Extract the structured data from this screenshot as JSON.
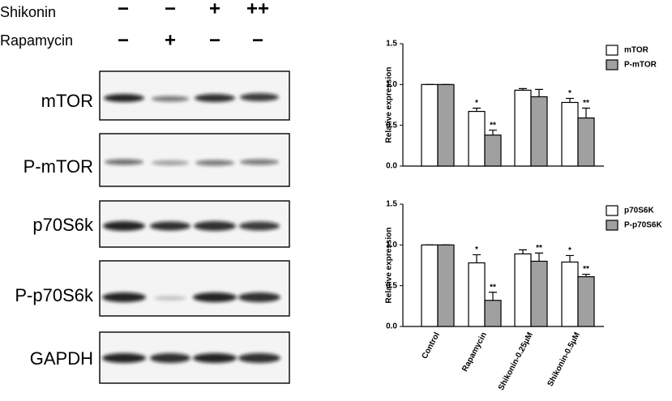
{
  "blot": {
    "treatments": [
      {
        "name": "Shikonin",
        "levels": [
          "−",
          "−",
          "+",
          "++"
        ]
      },
      {
        "name": "Rapamycin",
        "levels": [
          "−",
          "+",
          "−",
          "−"
        ]
      }
    ],
    "rows": [
      "mTOR",
      "P-mTOR",
      "p70S6k",
      "P-p70S6k",
      "GAPDH"
    ]
  },
  "chart_data": [
    {
      "type": "bar",
      "y_label": "Relative expression",
      "ylim": [
        0,
        1.5
      ],
      "yticks": [
        {
          "value": 0,
          "label": "0.0"
        },
        {
          "value": 0.5,
          "label": "0.5"
        },
        {
          "value": 1,
          "label": "1.0"
        },
        {
          "value": 1.5,
          "label": "1.5"
        }
      ],
      "series": [
        {
          "name": "mTOR",
          "color": "#ffffff",
          "values": [
            1,
            0.67,
            0.93,
            0.78
          ],
          "errors": [
            0,
            0.04,
            0.02,
            0.05
          ],
          "annotations": [
            null,
            "*",
            null,
            "*"
          ]
        },
        {
          "name": "P-mTOR",
          "color": "#a0a0a0",
          "values": [
            1,
            0.38,
            0.85,
            0.59
          ],
          "errors": [
            0,
            0.06,
            0.09,
            0.12
          ],
          "annotations": [
            null,
            "**",
            null,
            "**"
          ]
        }
      ]
    },
    {
      "type": "bar",
      "y_label": "Relative expression",
      "ylim": [
        0,
        1.5
      ],
      "categories": [
        "Control",
        "Rapamycin",
        "Shikonin-0.25μM",
        "Shikonin-0.5μM"
      ],
      "yticks": [
        {
          "value": 0,
          "label": "0.0"
        },
        {
          "value": 0.5,
          "label": "0.5"
        },
        {
          "value": 1,
          "label": "1.0"
        },
        {
          "value": 1.5,
          "label": "1.5"
        }
      ],
      "series": [
        {
          "name": "p70S6K",
          "color": "#ffffff",
          "values": [
            1,
            0.78,
            0.89,
            0.79
          ],
          "errors": [
            0,
            0.1,
            0.05,
            0.08
          ],
          "annotations": [
            null,
            "*",
            null,
            "*"
          ]
        },
        {
          "name": "P-p70S6K",
          "color": "#a0a0a0",
          "values": [
            1,
            0.32,
            0.8,
            0.61
          ],
          "errors": [
            0,
            0.1,
            0.1,
            0.03
          ],
          "annotations": [
            null,
            "**",
            "**",
            "**"
          ]
        }
      ]
    }
  ]
}
